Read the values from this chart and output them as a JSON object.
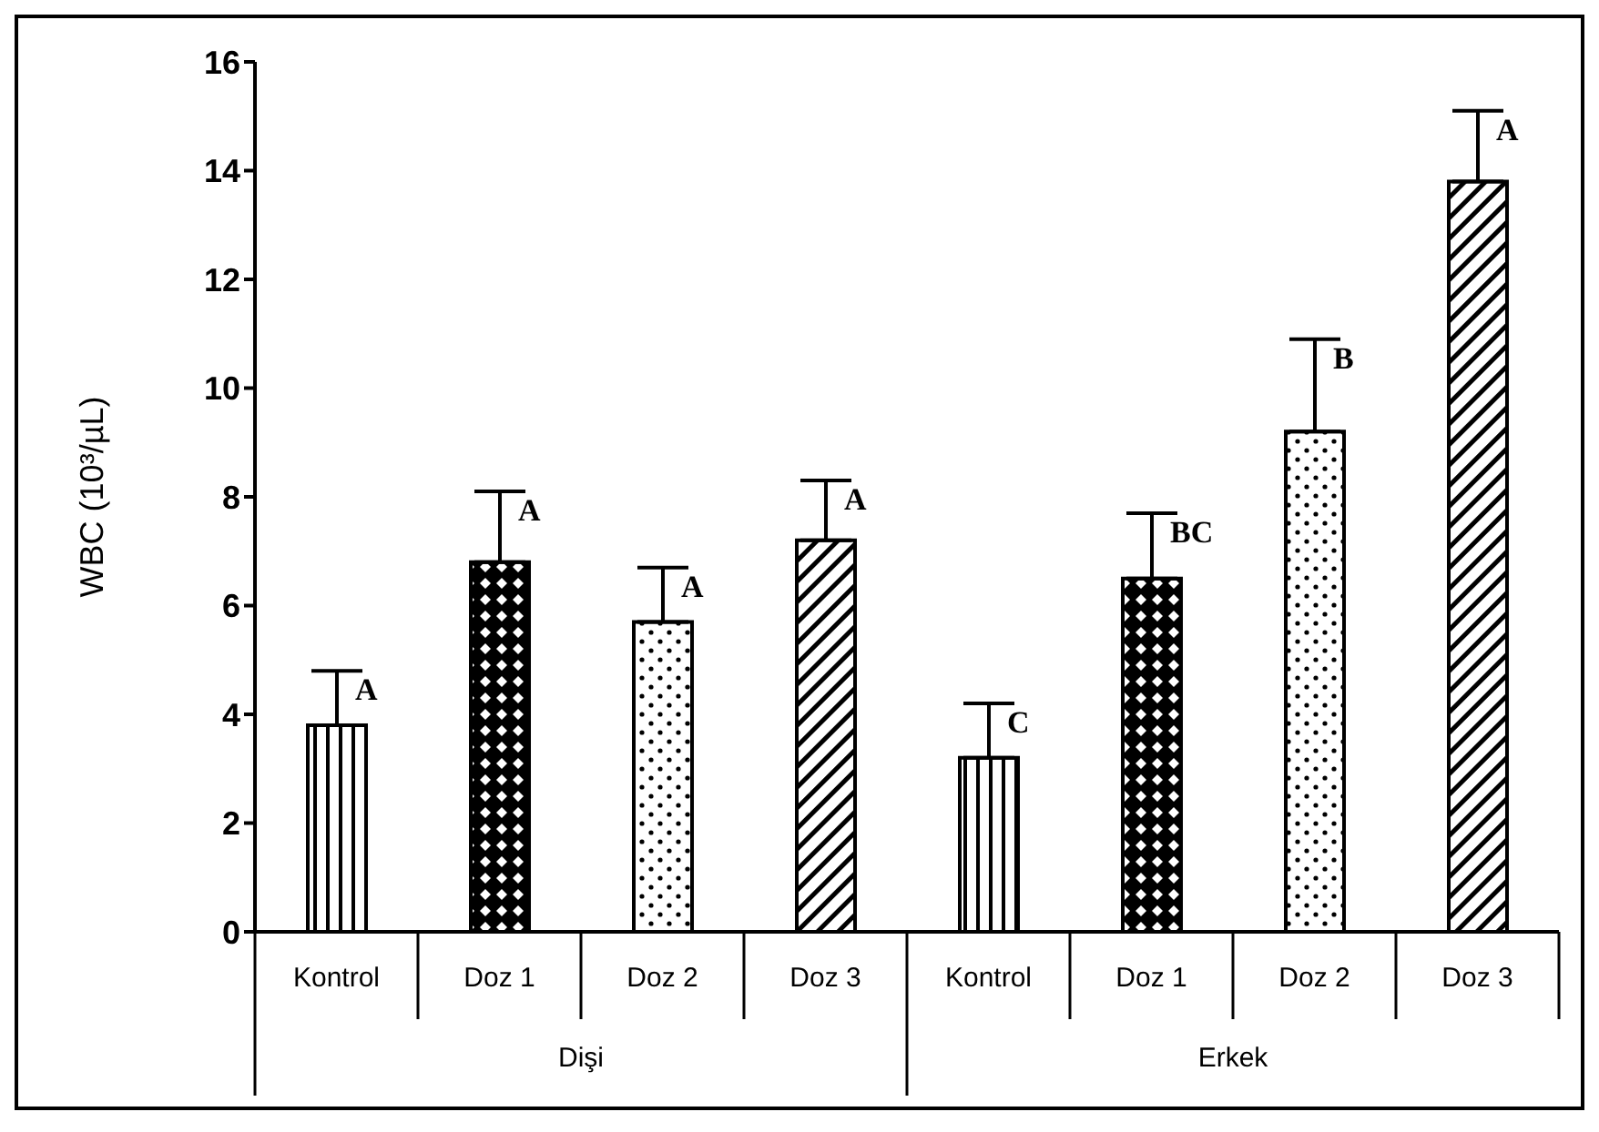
{
  "chart_data": {
    "type": "bar",
    "ylabel": "WBC (10³/µL)",
    "categories": [
      "Kontrol",
      "Doz 1",
      "Doz 2",
      "Doz 3",
      "Kontrol",
      "Doz 1",
      "Doz 2",
      "Doz 3"
    ],
    "values": [
      3.8,
      6.8,
      5.7,
      7.2,
      3.2,
      6.5,
      9.2,
      13.8
    ],
    "errors": [
      [
        3.8,
        4.8
      ],
      [
        6.8,
        8.1
      ],
      [
        5.7,
        6.7
      ],
      [
        7.2,
        8.3
      ],
      [
        3.2,
        4.2
      ],
      [
        6.5,
        7.7
      ],
      [
        9.2,
        10.9
      ],
      [
        13.8,
        15.1
      ]
    ],
    "value_labels": [
      "A",
      "A",
      "A",
      "A",
      "C",
      "BC",
      "B",
      "A"
    ],
    "colors": [
      "#000000",
      "#000000",
      "#000000",
      "#000000",
      "#000000",
      "#000000",
      "#000000",
      "#000000"
    ],
    "ylim": [
      0,
      16
    ],
    "yticks": [
      0,
      2,
      4,
      6,
      8,
      10,
      12,
      14,
      16
    ],
    "annotations": [
      "Dişi",
      "Erkek"
    ]
  }
}
